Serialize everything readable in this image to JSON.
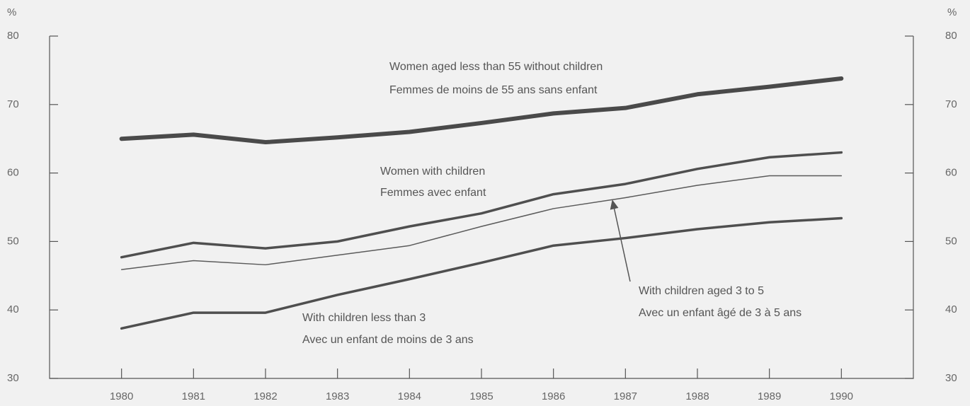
{
  "chart_data": {
    "type": "line",
    "y_unit": "%",
    "y2_unit": "%",
    "x": [
      1980,
      1981,
      1982,
      1983,
      1984,
      1985,
      1986,
      1987,
      1988,
      1989,
      1990
    ],
    "xlim": [
      1979,
      1991
    ],
    "xticks": [
      1980,
      1981,
      1982,
      1983,
      1984,
      1985,
      1986,
      1987,
      1988,
      1989,
      1990
    ],
    "ylim": [
      30,
      80
    ],
    "yticks": [
      30,
      40,
      50,
      60,
      70,
      80
    ],
    "y2lim": [
      30,
      80
    ],
    "y2ticks": [
      30,
      40,
      50,
      60,
      70,
      80
    ],
    "series": [
      {
        "name": "Women aged less than 55 without children",
        "name_fr": "Femmes de moins de 55 ans sans enfant",
        "color": "#4a4a4a",
        "values": [
          65.0,
          65.6,
          64.5,
          65.2,
          66.0,
          67.3,
          68.7,
          69.5,
          71.5,
          72.6,
          73.8
        ]
      },
      {
        "name": "Women with children",
        "name_fr": "Femmes avec enfant",
        "color": "#4f4f4f",
        "values": [
          47.7,
          49.8,
          49.0,
          50.0,
          52.2,
          54.1,
          56.9,
          58.4,
          60.6,
          62.3,
          63.0
        ]
      },
      {
        "name": "With children aged 3 to 5",
        "name_fr": "Avec un enfant âgé de 3 à 5 ans",
        "color": "#5a5a5a",
        "values": [
          45.9,
          47.2,
          46.6,
          48.0,
          49.4,
          52.2,
          54.8,
          56.4,
          58.2,
          59.6,
          59.6
        ]
      },
      {
        "name": "With children less than 3",
        "name_fr": "Avec un enfant de moins de 3 ans",
        "color": "#4f4f4f",
        "values": [
          37.3,
          39.6,
          39.6,
          42.2,
          44.5,
          46.9,
          49.4,
          50.5,
          51.8,
          52.8,
          53.4
        ]
      }
    ]
  }
}
